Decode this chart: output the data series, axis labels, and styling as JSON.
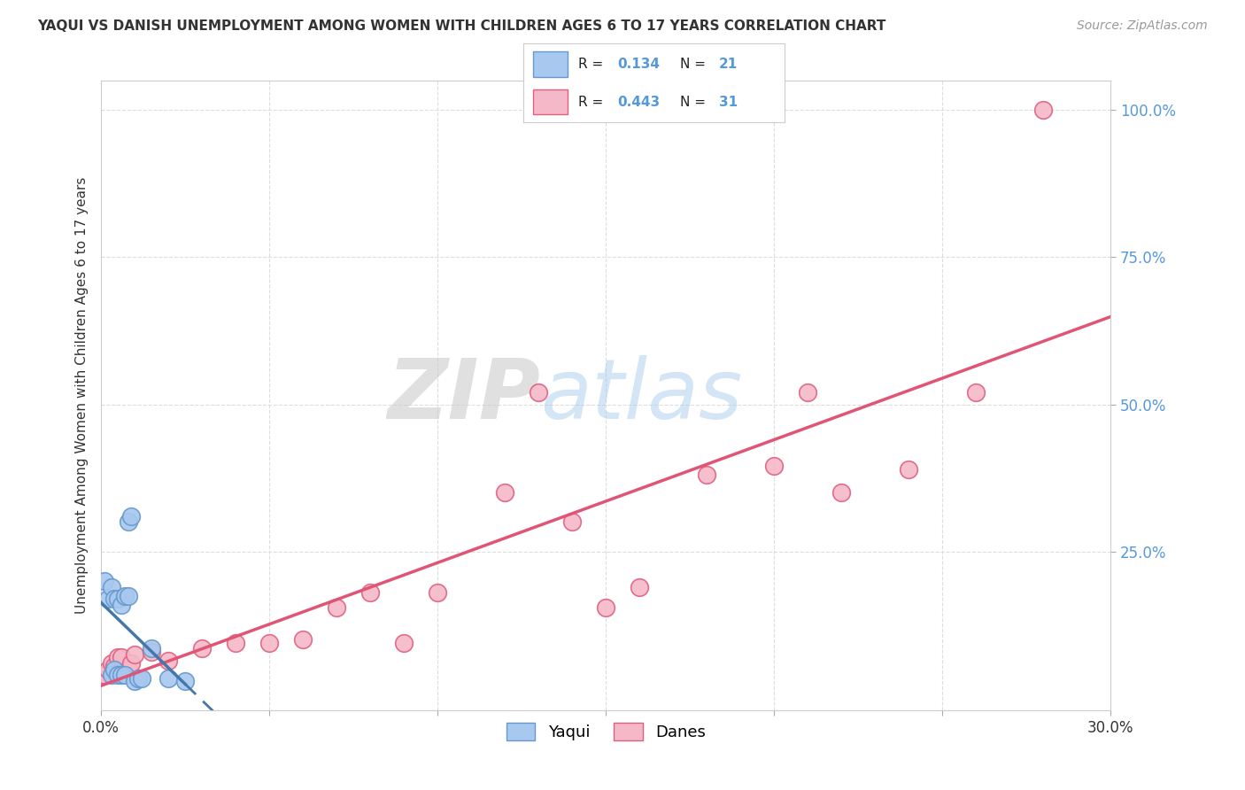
{
  "title": "YAQUI VS DANISH UNEMPLOYMENT AMONG WOMEN WITH CHILDREN AGES 6 TO 17 YEARS CORRELATION CHART",
  "source": "Source: ZipAtlas.com",
  "ylabel": "Unemployment Among Women with Children Ages 6 to 17 years",
  "xlim": [
    0.0,
    0.3
  ],
  "ylim": [
    -0.02,
    1.05
  ],
  "yaqui_R": 0.134,
  "yaqui_N": 21,
  "danes_R": 0.443,
  "danes_N": 31,
  "yaqui_color": "#a8c8f0",
  "danes_color": "#f5b8c8",
  "yaqui_edge_color": "#6699cc",
  "danes_edge_color": "#e06080",
  "yaqui_line_color": "#4477aa",
  "danes_line_color": "#e05575",
  "watermark_zip": "ZIP",
  "watermark_atlas": "atlas",
  "legend_yaqui_label": "Yaqui",
  "legend_danes_label": "Danes",
  "yaqui_x": [
    0.001,
    0.002,
    0.003,
    0.003,
    0.004,
    0.004,
    0.005,
    0.005,
    0.006,
    0.006,
    0.007,
    0.007,
    0.008,
    0.008,
    0.009,
    0.01,
    0.011,
    0.012,
    0.015,
    0.02,
    0.025
  ],
  "yaqui_y": [
    0.2,
    0.17,
    0.19,
    0.04,
    0.17,
    0.05,
    0.17,
    0.04,
    0.16,
    0.04,
    0.175,
    0.04,
    0.175,
    0.3,
    0.31,
    0.03,
    0.035,
    0.035,
    0.085,
    0.035,
    0.03
  ],
  "danes_x": [
    0.001,
    0.002,
    0.003,
    0.004,
    0.005,
    0.006,
    0.008,
    0.009,
    0.01,
    0.015,
    0.02,
    0.03,
    0.04,
    0.05,
    0.06,
    0.07,
    0.08,
    0.09,
    0.1,
    0.12,
    0.13,
    0.14,
    0.15,
    0.16,
    0.18,
    0.2,
    0.21,
    0.22,
    0.24,
    0.26,
    0.28
  ],
  "danes_y": [
    0.04,
    0.05,
    0.06,
    0.055,
    0.07,
    0.07,
    0.05,
    0.06,
    0.075,
    0.08,
    0.065,
    0.085,
    0.095,
    0.095,
    0.1,
    0.155,
    0.18,
    0.095,
    0.18,
    0.35,
    0.52,
    0.3,
    0.155,
    0.19,
    0.38,
    0.395,
    0.52,
    0.35,
    0.39,
    0.52,
    1.0
  ],
  "ytick_positions": [
    0.25,
    0.5,
    0.75,
    1.0
  ],
  "ytick_labels": [
    "25.0%",
    "50.0%",
    "75.0%",
    "100.0%"
  ],
  "grid_color": "#dddddd",
  "spine_color": "#cccccc"
}
